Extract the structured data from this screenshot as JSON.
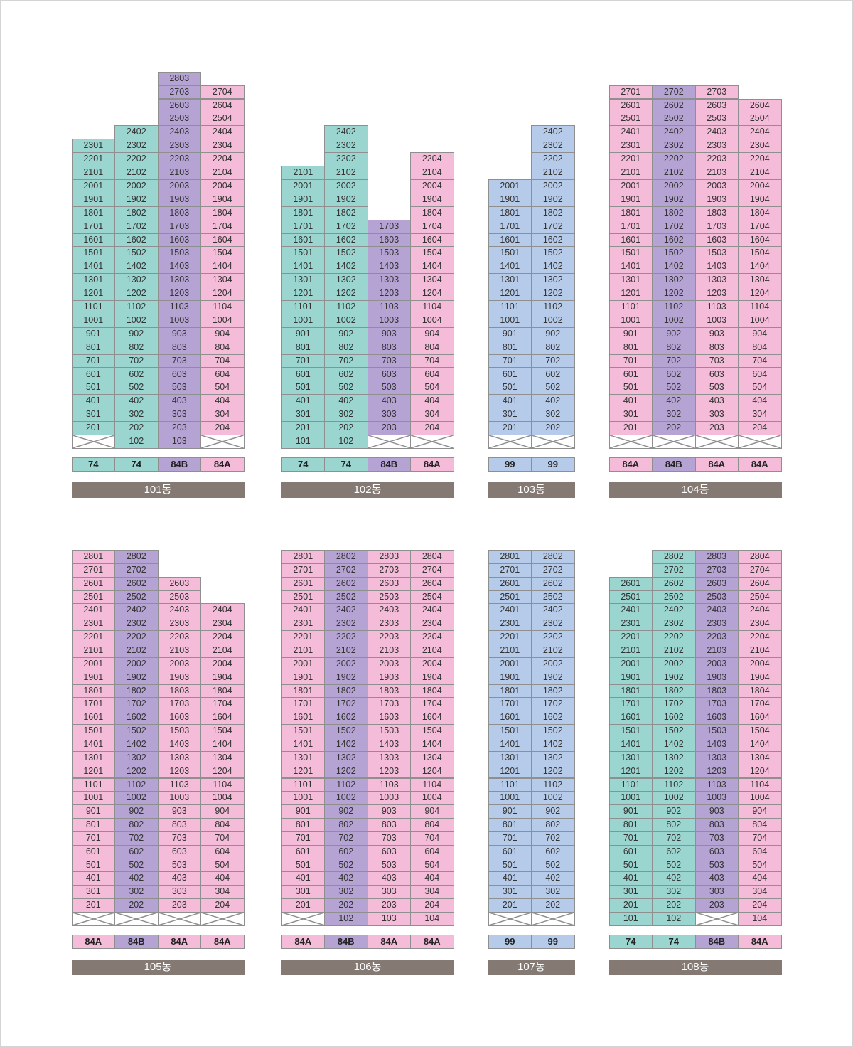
{
  "colors": {
    "74": "#9bd5cf",
    "84A": "#f4bcd8",
    "84B": "#b5a3d3",
    "99": "#b6cbe9",
    "label_bg": "#857a73",
    "border": "#8f8f8f"
  },
  "buildings": [
    {
      "id": "101",
      "label": "101동",
      "columns": [
        {
          "type": "74",
          "ground": "x",
          "top": 23
        },
        {
          "type": "74",
          "ground": "102",
          "top": 24
        },
        {
          "type": "84B",
          "ground": "103",
          "top": 28
        },
        {
          "type": "84A",
          "ground": "x",
          "top": 27
        }
      ]
    },
    {
      "id": "102",
      "label": "102동",
      "columns": [
        {
          "type": "74",
          "ground": "101",
          "top": 21
        },
        {
          "type": "74",
          "ground": "102",
          "top": 24
        },
        {
          "type": "84B",
          "ground": "x",
          "top": 17
        },
        {
          "type": "84A",
          "ground": "x",
          "top": 22
        }
      ]
    },
    {
      "id": "103",
      "label": "103동",
      "columns": [
        {
          "type": "99",
          "ground": "x",
          "top": 20
        },
        {
          "type": "99",
          "ground": "x",
          "top": 24
        }
      ]
    },
    {
      "id": "104",
      "label": "104동",
      "columns": [
        {
          "type": "84A",
          "ground": "x",
          "top": 27
        },
        {
          "type": "84B",
          "ground": "x",
          "top": 27
        },
        {
          "type": "84A",
          "ground": "x",
          "top": 27
        },
        {
          "type": "84A",
          "ground": "x",
          "top": 26
        }
      ]
    },
    {
      "id": "105",
      "label": "105동",
      "columns": [
        {
          "type": "84A",
          "ground": "x",
          "top": 28
        },
        {
          "type": "84B",
          "ground": "x",
          "top": 28
        },
        {
          "type": "84A",
          "ground": "x",
          "top": 26
        },
        {
          "type": "84A",
          "ground": "x",
          "top": 24
        }
      ]
    },
    {
      "id": "106",
      "label": "106동",
      "columns": [
        {
          "type": "84A",
          "ground": "x",
          "top": 28
        },
        {
          "type": "84B",
          "ground": "102",
          "top": 28
        },
        {
          "type": "84A",
          "ground": "103",
          "top": 28
        },
        {
          "type": "84A",
          "ground": "104",
          "top": 28
        }
      ]
    },
    {
      "id": "107",
      "label": "107동",
      "columns": [
        {
          "type": "99",
          "ground": "x",
          "top": 28
        },
        {
          "type": "99",
          "ground": "x",
          "top": 28
        }
      ]
    },
    {
      "id": "108",
      "label": "108동",
      "columns": [
        {
          "type": "74",
          "ground": "101",
          "top": 26
        },
        {
          "type": "74",
          "ground": "102",
          "top": 28
        },
        {
          "type": "84B",
          "ground": "x",
          "top": 28
        },
        {
          "type": "84A",
          "ground": "104",
          "top": 28
        }
      ]
    }
  ]
}
